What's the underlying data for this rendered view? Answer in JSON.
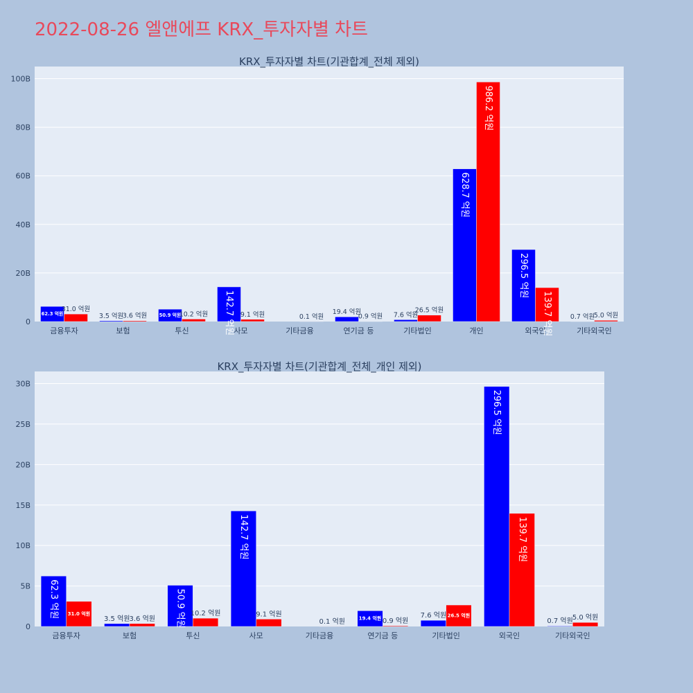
{
  "page_title": "2022-08-26 엘앤에프 KRX_투자자별 차트",
  "colors": {
    "buy": "#0000ff",
    "sell": "#ff0000",
    "title": "#e8495b"
  },
  "chart_data": [
    {
      "type": "bar",
      "title": "KRX_투자자별 차트(기관합계_전체 제외)",
      "categories": [
        "금융투자",
        "보험",
        "투신",
        "사모",
        "기타금융",
        "연기금 등",
        "기타법인",
        "개인",
        "외국인",
        "기타외국인"
      ],
      "series": [
        {
          "color": "#0000ff",
          "values": [
            6.23,
            0.35,
            5.09,
            14.27,
            0.0,
            1.94,
            0.76,
            62.87,
            29.65,
            0.07
          ],
          "labels": [
            "62.3 억원",
            "3.5 억원",
            "50.9 억원",
            "142.7 억원",
            "",
            "19.4 억원",
            "7.6 억원",
            "628.7 억원",
            "296.5 억원",
            "0.7 억원"
          ]
        },
        {
          "color": "#ff0000",
          "values": [
            3.1,
            0.36,
            1.02,
            0.91,
            0.01,
            0.09,
            2.65,
            98.62,
            13.97,
            0.5
          ],
          "labels": [
            "31.0 억원",
            "3.6 억원",
            "10.2 억원",
            "9.1 억원",
            "0.1 억원",
            "0.9 억원",
            "26.5 억원",
            "986.2 억원",
            "139.7 억원",
            "5.0 억원"
          ]
        }
      ],
      "yticks": [
        0,
        20,
        40,
        60,
        80,
        100
      ],
      "ytick_labels": [
        "0",
        "20B",
        "40B",
        "60B",
        "80B",
        "100B"
      ],
      "ylim": [
        0,
        105
      ]
    },
    {
      "type": "bar",
      "title": "KRX_투자자별 차트(기관합계_전체_개인 제외)",
      "categories": [
        "금융투자",
        "보험",
        "투신",
        "사모",
        "기타금융",
        "연기금 등",
        "기타법인",
        "외국인",
        "기타외국인"
      ],
      "series": [
        {
          "color": "#0000ff",
          "values": [
            6.23,
            0.35,
            5.09,
            14.27,
            0.0,
            1.94,
            0.76,
            29.65,
            0.07
          ],
          "labels": [
            "62.3 억원",
            "3.5 억원",
            "50.9 억원",
            "142.7 억원",
            "",
            "19.4 억원",
            "7.6 억원",
            "296.5 억원",
            "0.7 억원"
          ]
        },
        {
          "color": "#ff0000",
          "values": [
            3.1,
            0.36,
            1.02,
            0.91,
            0.01,
            0.09,
            2.65,
            13.97,
            0.5
          ],
          "labels": [
            "31.0 억원",
            "3.6 억원",
            "10.2 억원",
            "9.1 억원",
            "0.1 억원",
            "0.9 억원",
            "26.5 억원",
            "139.7 억원",
            "5.0 억원"
          ]
        }
      ],
      "yticks": [
        0,
        5,
        10,
        15,
        20,
        25,
        30
      ],
      "ytick_labels": [
        "0",
        "5B",
        "10B",
        "15B",
        "20B",
        "25B",
        "30B"
      ],
      "ylim": [
        0,
        31.5
      ]
    }
  ]
}
